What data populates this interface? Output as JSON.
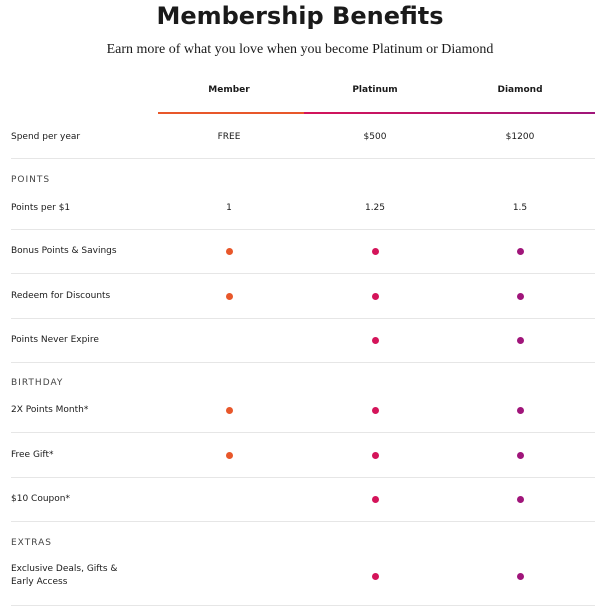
{
  "header": {
    "title": "Membership Benefits",
    "subtitle": "Earn more of what you love when you become Platinum or Diamond"
  },
  "table": {
    "columns": [
      "Member",
      "Platinum",
      "Diamond"
    ],
    "spend": [
      "Spend per year",
      "FREE",
      "$500",
      "$1200"
    ],
    "sections": [
      {
        "name": "POINTS",
        "rows": [
          [
            "Points per $1",
            "1",
            "1.25",
            "1.5"
          ],
          [
            "Bonus Points & Savings"
          ],
          [
            "Redeem for Discounts"
          ],
          [
            "Points Never Expire"
          ]
        ]
      },
      {
        "name": "BIRTHDAY",
        "rows": [
          [
            "2X Points Month*"
          ],
          [
            "Free Gift*"
          ],
          [
            "$10 Coupon*"
          ]
        ]
      },
      {
        "name": "EXTRAS",
        "rows": [
          [
            "Exclusive Deals, Gifts & Early Access"
          ]
        ]
      }
    ]
  }
}
